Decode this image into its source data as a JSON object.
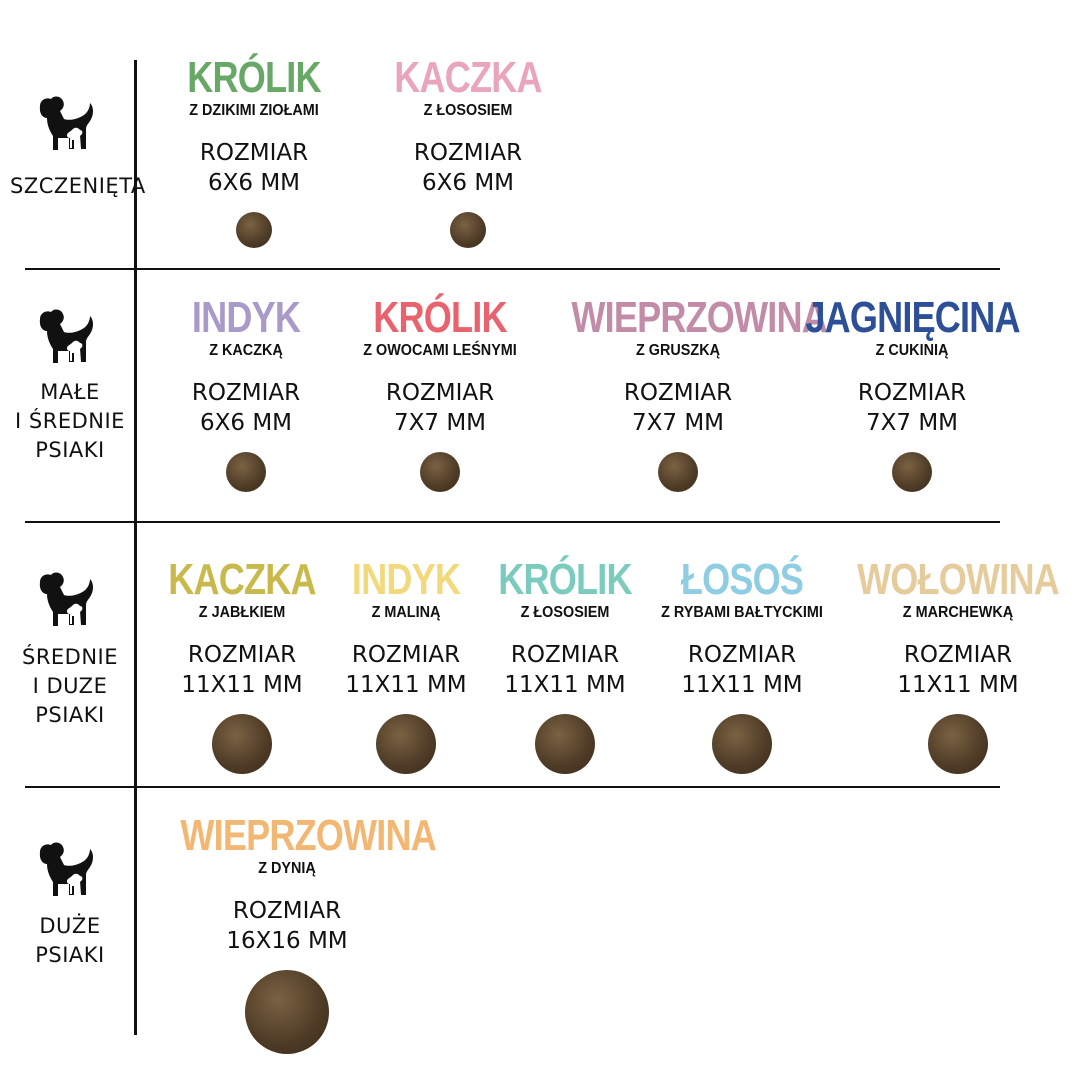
{
  "groups": [
    {
      "label": "SZCZENIĘTA",
      "icon": "dog-with-puppy-icon",
      "products": [
        {
          "title": "KRÓLIK",
          "subtitle": "Z DZIKIMI ZIOŁAMI",
          "size_label": "ROZMIAR",
          "size": "6X6 MM",
          "color": "#68a866"
        },
        {
          "title": "KACZKA",
          "subtitle": "Z ŁOSOSIEM",
          "size_label": "ROZMIAR",
          "size": "6X6 MM",
          "color": "#e9a6ba"
        }
      ]
    },
    {
      "label": "MAŁE\nI ŚREDNIE\nPSIAKI",
      "icon": "dog-with-puppy-icon",
      "products": [
        {
          "title": "INDYK",
          "subtitle": "Z KACZKĄ",
          "size_label": "ROZMIAR",
          "size": "6X6 MM",
          "color": "#a99ac9"
        },
        {
          "title": "KRÓLIK",
          "subtitle": "Z OWOCAMI LEŚNYMI",
          "size_label": "ROZMIAR",
          "size": "7X7 MM",
          "color": "#e8636d"
        },
        {
          "title": "WIEPRZOWINA",
          "subtitle": "Z GRUSZKĄ",
          "size_label": "ROZMIAR",
          "size": "7X7 MM",
          "color": "#c28ba8"
        },
        {
          "title": "JAGNIĘCINA",
          "subtitle": "Z CUKINIĄ",
          "size_label": "ROZMIAR",
          "size": "7X7 MM",
          "color": "#2c4f98"
        }
      ]
    },
    {
      "label": "ŚREDNIE\nI DUZE\nPSIAKI",
      "icon": "dog-with-puppy-icon",
      "products": [
        {
          "title": "KACZKA",
          "subtitle": "Z JABŁKIEM",
          "size_label": "ROZMIAR",
          "size": "11X11 MM",
          "color": "#c9b94a"
        },
        {
          "title": "INDYK",
          "subtitle": "Z MALINĄ",
          "size_label": "ROZMIAR",
          "size": "11X11 MM",
          "color": "#f1d97c"
        },
        {
          "title": "KRÓLIK",
          "subtitle": "Z ŁOSOSIEM",
          "size_label": "ROZMIAR",
          "size": "11X11 MM",
          "color": "#7ccbbf"
        },
        {
          "title": "ŁOSOŚ",
          "subtitle": "Z RYBAMI BAŁTYCKIMI",
          "size_label": "ROZMIAR",
          "size": "11X11 MM",
          "color": "#8fcde2"
        },
        {
          "title": "WOŁOWINA",
          "subtitle": "Z MARCHEWKĄ",
          "size_label": "ROZMIAR",
          "size": "11X11 MM",
          "color": "#e6cc9c"
        }
      ]
    },
    {
      "label": "DUŻE\nPSIAKI",
      "icon": "dog-with-puppy-icon",
      "products": [
        {
          "title": "WIEPRZOWINA",
          "subtitle": "Z DYNIĄ",
          "size_label": "ROZMIAR",
          "size": "16X16 MM",
          "color": "#f2b873"
        }
      ]
    }
  ]
}
